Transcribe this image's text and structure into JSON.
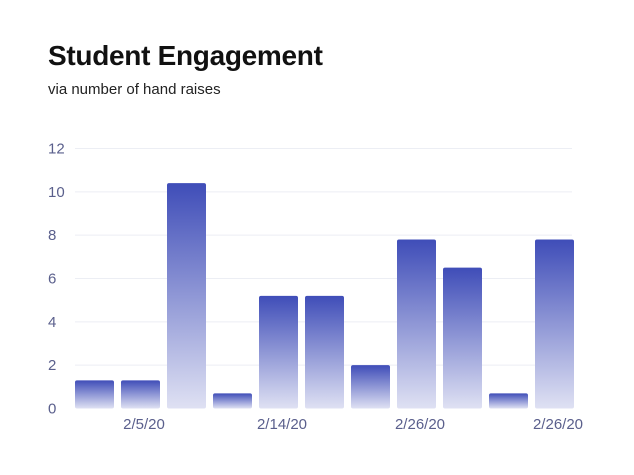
{
  "chart_data": {
    "type": "bar",
    "title": "Student Engagement",
    "subtitle": "via number of hand raises",
    "xlabel": "",
    "ylabel": "",
    "ylim": [
      0,
      12
    ],
    "yticks": [
      0,
      2,
      4,
      6,
      8,
      10,
      12
    ],
    "values": [
      1.3,
      1.3,
      10.4,
      0.7,
      5.2,
      5.2,
      2.0,
      7.8,
      6.5,
      0.7,
      7.8
    ],
    "xtick_labels": [
      {
        "bar_index": 1.5,
        "label": "2/5/20"
      },
      {
        "bar_index": 4.5,
        "label": "2/14/20"
      },
      {
        "bar_index": 7.5,
        "label": "2/26/20"
      },
      {
        "bar_index": 10.5,
        "label": "2/26/20"
      }
    ],
    "grid": true,
    "colors": {
      "bar_top": "#3f4db8",
      "bar_bottom": "#dfe1f3",
      "grid": "#eceef4",
      "tick": "#5a5f8c"
    }
  }
}
